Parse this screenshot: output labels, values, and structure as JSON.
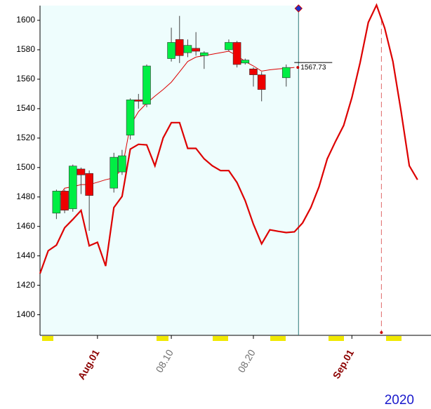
{
  "chart_data": {
    "type": "candlestick",
    "x": [
      2,
      3,
      4,
      5,
      6,
      9,
      10,
      11,
      12,
      13,
      16,
      17,
      18,
      19,
      20,
      23,
      24,
      25,
      26,
      27,
      30
    ],
    "open": [
      1469,
      1484,
      1472,
      1499,
      1496,
      1486,
      1497,
      1522,
      1546,
      1543,
      1574,
      1587,
      1578,
      1581,
      1576,
      1580,
      1585,
      1571,
      1567,
      1563,
      1561
    ],
    "high": [
      1485,
      1485,
      1502,
      1500,
      1498,
      1510,
      1512,
      1547,
      1550,
      1570,
      1595,
      1603,
      1587,
      1592,
      1579,
      1587,
      1586,
      1574,
      1568,
      1565,
      1570
    ],
    "low": [
      1465,
      1469,
      1470,
      1482,
      1457,
      1483,
      1495,
      1519,
      1540,
      1541,
      1572,
      1571,
      1575,
      1576,
      1567,
      1579,
      1568,
      1570,
      1555,
      1545,
      1555
    ],
    "close": [
      1484,
      1471,
      1501,
      1495,
      1481,
      1507,
      1508,
      1546,
      1545,
      1569,
      1585,
      1576,
      1583,
      1579,
      1578,
      1585,
      1570,
      1573,
      1563,
      1553,
      1568
    ],
    "up_color": "#00ee44",
    "down_color": "#ee0000",
    "lines": [
      {
        "color": "#dd0000",
        "width": 1,
        "x": [
          2,
          3,
          4,
          5,
          6,
          7,
          8,
          9,
          10,
          11,
          12,
          13,
          14,
          15,
          16,
          17,
          18,
          19,
          20,
          21,
          22,
          23,
          24,
          25,
          26,
          27,
          28,
          29,
          30,
          31
        ],
        "values": [
          1478,
          1486,
          1487,
          1488.4,
          1488.4,
          1490,
          1491.7,
          1493,
          1499,
          1528.6,
          1538,
          1543.7,
          1548.5,
          1553,
          1558,
          1565,
          1572,
          1575,
          1576,
          1577,
          1578,
          1579,
          1576,
          1572,
          1569,
          1565.5,
          1566.4,
          1567,
          1567.4,
          1568
        ]
      },
      {
        "color": "#dd0000",
        "width": 2.2,
        "x": [
          0,
          1,
          2,
          3,
          4,
          5,
          6,
          7,
          8,
          9,
          10,
          11,
          12,
          13,
          14,
          15,
          16,
          17,
          18,
          19,
          20,
          21,
          22,
          23,
          24,
          25,
          26,
          27,
          28,
          29,
          30,
          31,
          32,
          33,
          34,
          35,
          36,
          37,
          38,
          39,
          40,
          41,
          42,
          43,
          44,
          45,
          46
        ],
        "values": [
          1428,
          1443.5,
          1447.3,
          1459.1,
          1464.8,
          1470.9,
          1446.8,
          1449.2,
          1433.1,
          1472.8,
          1480.4,
          1512.5,
          1515.8,
          1515.4,
          1501.2,
          1520.1,
          1530.5,
          1530.5,
          1513,
          1513,
          1505.9,
          1501.2,
          1497.9,
          1497.9,
          1489.8,
          1477.5,
          1461.5,
          1448.2,
          1457.7,
          1456.7,
          1455.8,
          1456.3,
          1462.4,
          1472.8,
          1487,
          1505.9,
          1517.7,
          1528.6,
          1547.5,
          1571.2,
          1598.6,
          1610.4,
          1594.8,
          1572.1,
          1538.1,
          1501.2,
          1491.7
        ]
      }
    ],
    "divider_x": 31.5,
    "marker_x": 41.6,
    "price_label": {
      "value": 1568,
      "label": "1567.73"
    },
    "xlim": [
      0,
      46.7
    ],
    "ylim": [
      1386,
      1610
    ],
    "yticks": [
      1400,
      1420,
      1440,
      1460,
      1480,
      1500,
      1520,
      1540,
      1560,
      1580,
      1600
    ],
    "xticks": [
      {
        "value": 7,
        "label": "Aug.01",
        "color": "#8b0000"
      },
      {
        "value": 16,
        "label": "08.10",
        "color": "#707070"
      },
      {
        "value": 26,
        "label": "08.20",
        "color": "#707070"
      },
      {
        "value": 38,
        "label": "Sep.01",
        "color": "#8b0000"
      }
    ],
    "year": "2020"
  }
}
